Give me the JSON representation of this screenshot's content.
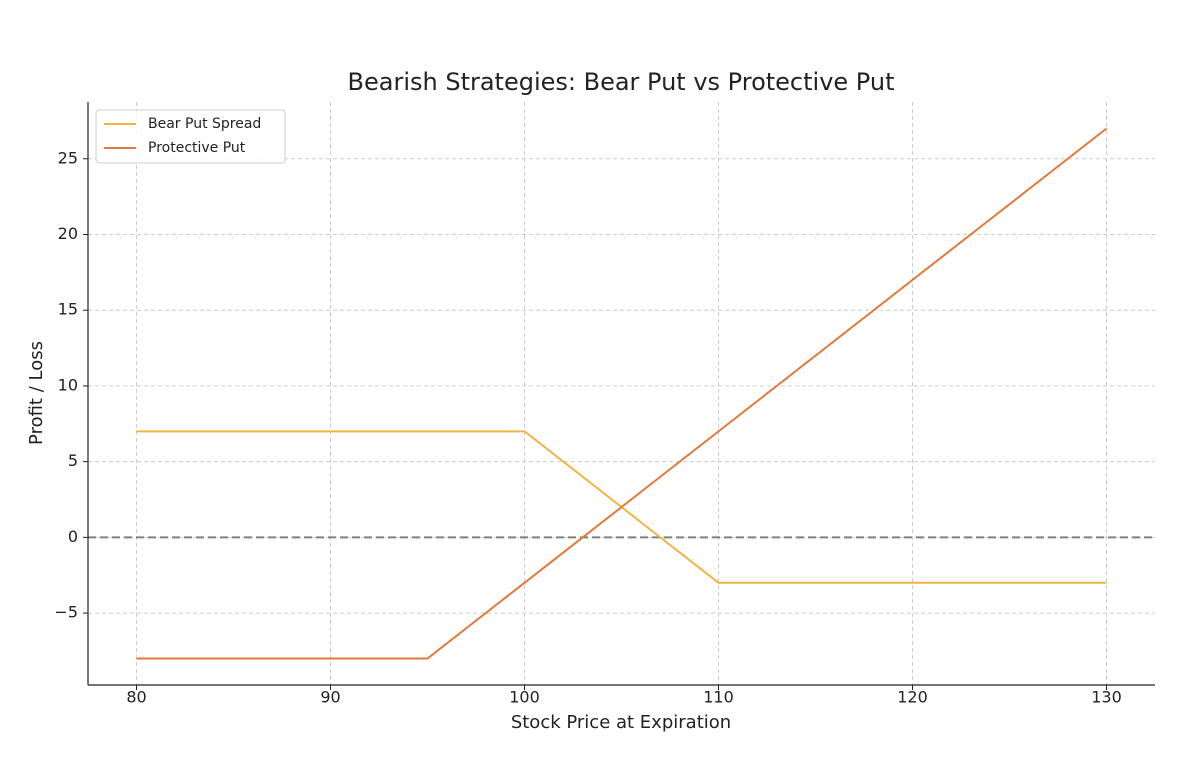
{
  "chart_data": {
    "type": "line",
    "title": "Bearish Strategies: Bear Put vs Protective Put",
    "x_label": "Stock Price at Expiration",
    "y_label": "Profit / Loss",
    "x": [
      80,
      95,
      100,
      110,
      130
    ],
    "series": [
      {
        "name": "Bear Put Spread",
        "color": "#f1b440",
        "values": [
          7,
          7,
          7,
          -3,
          -3
        ]
      },
      {
        "name": "Protective Put",
        "color": "#e07a3a",
        "values": [
          -8,
          -8,
          -3,
          7,
          27
        ]
      }
    ],
    "xlim": [
      77.5,
      132.5
    ],
    "ylim": [
      -9.75,
      28.75
    ],
    "xticks": [
      80,
      90,
      100,
      110,
      120,
      130
    ],
    "yticks": [
      {
        "value": -5,
        "label": "−5"
      },
      0,
      5,
      10,
      15,
      20,
      25
    ],
    "hline": 0,
    "grid": true,
    "legend": "upper-left"
  }
}
